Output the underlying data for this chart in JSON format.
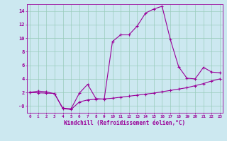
{
  "xlabel": "Windchill (Refroidissement éolien,°C)",
  "bg_color": "#cce8f0",
  "line_color": "#990099",
  "grid_color": "#99ccbb",
  "x_labels": [
    "0",
    "1",
    "2",
    "3",
    "4",
    "5",
    "6",
    "7",
    "8",
    "9",
    "10",
    "11",
    "12",
    "13",
    "14",
    "15",
    "16",
    "17",
    "18",
    "19",
    "20",
    "21",
    "22",
    "23"
  ],
  "ylim": [
    -1.0,
    15.0
  ],
  "xlim": [
    -0.3,
    23.3
  ],
  "series1_x": [
    0,
    1,
    2,
    3,
    4,
    5,
    6,
    7,
    8,
    9,
    10,
    11,
    12,
    13,
    14,
    15,
    16,
    17,
    18,
    19,
    20,
    21,
    22,
    23
  ],
  "series1_y": [
    2.0,
    2.2,
    2.1,
    1.8,
    -0.3,
    -0.4,
    1.9,
    3.2,
    1.1,
    1.0,
    9.5,
    10.5,
    10.5,
    11.8,
    13.7,
    14.3,
    14.7,
    9.8,
    5.8,
    4.1,
    4.0,
    5.7,
    5.0,
    4.9
  ],
  "series2_x": [
    0,
    1,
    2,
    3,
    4,
    5,
    6,
    7,
    8,
    9,
    10,
    11,
    12,
    13,
    14,
    15,
    16,
    17,
    18,
    19,
    20,
    21,
    22,
    23
  ],
  "series2_y": [
    2.0,
    1.95,
    1.9,
    1.85,
    -0.4,
    -0.5,
    0.6,
    0.9,
    1.0,
    1.05,
    1.15,
    1.3,
    1.45,
    1.6,
    1.75,
    1.9,
    2.1,
    2.3,
    2.5,
    2.7,
    3.0,
    3.3,
    3.7,
    4.0
  ],
  "yticks": [
    0,
    2,
    4,
    6,
    8,
    10,
    12,
    14
  ],
  "ytick_labels": [
    "-0",
    "2",
    "4",
    "6",
    "8",
    "10",
    "12",
    "14"
  ]
}
